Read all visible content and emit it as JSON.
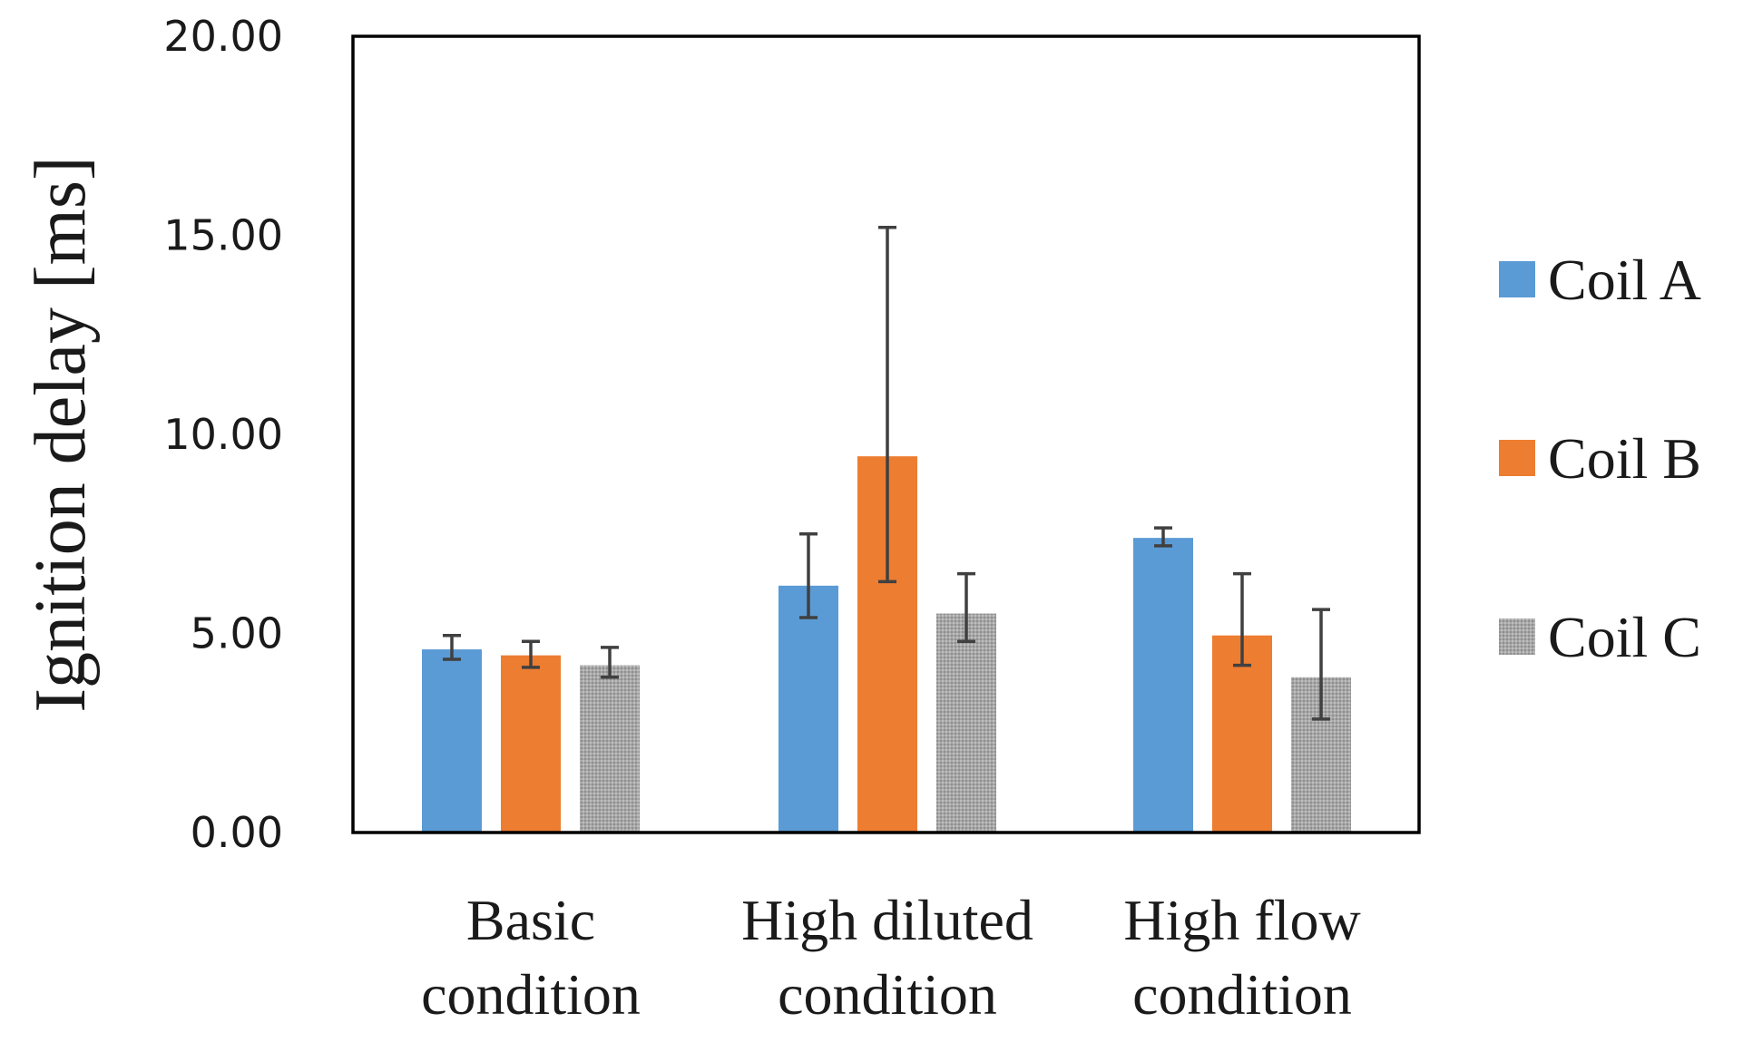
{
  "chart_data": {
    "type": "bar",
    "title": "",
    "xlabel": "",
    "ylabel": "Ignition delay [ms]",
    "ylim": [
      0,
      20
    ],
    "yticks": [
      "0.00",
      "5.00",
      "10.00",
      "15.00",
      "20.00"
    ],
    "ytick_values": [
      0,
      5,
      10,
      15,
      20
    ],
    "categories": [
      [
        "Basic",
        "condition"
      ],
      [
        "High diluted",
        "condition"
      ],
      [
        "High flow",
        "condition"
      ]
    ],
    "grid": false,
    "legend_position": "right",
    "series": [
      {
        "name": "Coil A",
        "color": "#5b9bd5",
        "pattern": "solid",
        "values": [
          4.6,
          6.2,
          7.4
        ],
        "err_low": [
          4.35,
          5.4,
          7.2
        ],
        "err_high": [
          4.95,
          7.5,
          7.65
        ]
      },
      {
        "name": "Coil B",
        "color": "#ed7d31",
        "pattern": "solid",
        "values": [
          4.45,
          9.45,
          4.95
        ],
        "err_low": [
          4.15,
          6.3,
          4.2
        ],
        "err_high": [
          4.8,
          15.2,
          6.5
        ]
      },
      {
        "name": "Coil C",
        "color": "#a5a5a5",
        "pattern": "dotted",
        "values": [
          4.2,
          5.5,
          3.9
        ],
        "err_low": [
          3.9,
          4.8,
          2.85
        ],
        "err_high": [
          4.65,
          6.5,
          5.6
        ]
      }
    ]
  }
}
